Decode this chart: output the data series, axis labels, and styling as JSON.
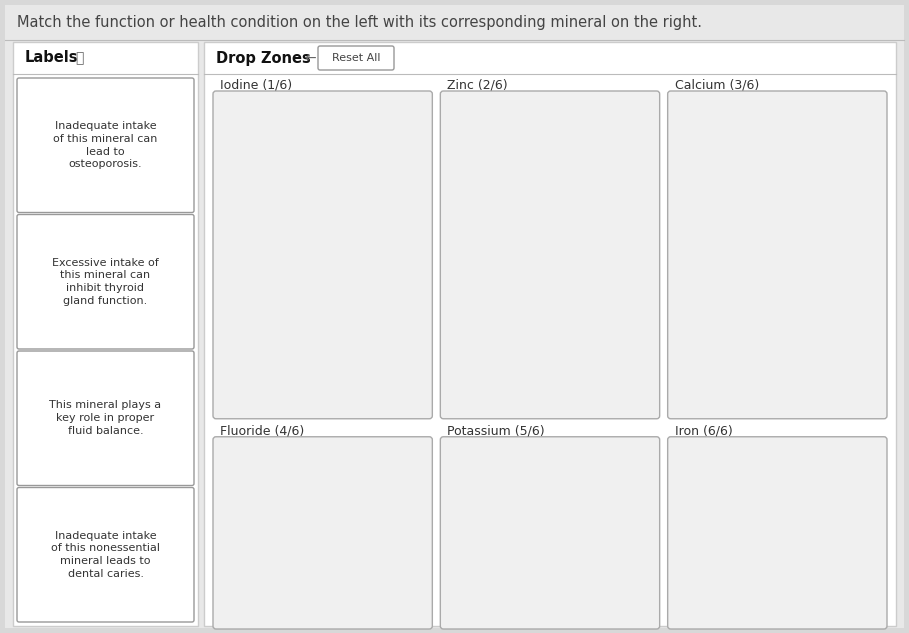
{
  "title": "Match the function or health condition on the left with its corresponding mineral on the right.",
  "title_color": "#444444",
  "title_fontsize": 10.5,
  "bg_color": "#d8d8d8",
  "content_bg": "#e8e8e8",
  "white": "#ffffff",
  "border_color": "#bbbbbb",
  "dark_border": "#999999",
  "panel_border": "#cccccc",
  "left_panel_title": "Labels",
  "info_icon": "ⓘ",
  "right_panel_title": "Drop Zones",
  "arrow_icon": "←",
  "reset_btn": "Reset All",
  "labels": [
    "Inadequate intake\nof this mineral can\nlead to\nosteoporosis.",
    "Excessive intake of\nthis mineral can\ninhibit thyroid\ngland function.",
    "This mineral plays a\nkey role in proper\nfluid balance.",
    "Inadequate intake\nof this nonessential\nmineral leads to\ndental caries."
  ],
  "label_fontsize": 8.0,
  "label_text_color": "#333333",
  "minerals_row1": [
    "Iodine (1/6)",
    "Zinc (2/6)",
    "Calcium (3/6)"
  ],
  "minerals_row2": [
    "Fluoride (4/6)",
    "Potassium (5/6)",
    "Iron (6/6)"
  ],
  "mineral_fontsize": 9.0,
  "mineral_text_color": "#333333",
  "dropbox_fill": "#f0f0f0",
  "dropbox_border": "#aaaaaa"
}
